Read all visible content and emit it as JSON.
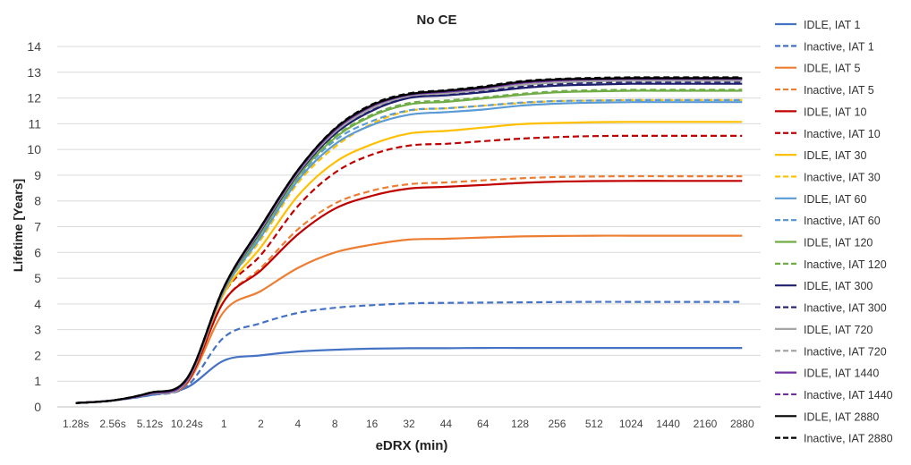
{
  "chart_data": {
    "type": "line",
    "title": "No CE",
    "xlabel": "eDRX (min)",
    "ylabel": "Lifetime [Years]",
    "categories": [
      "1.28s",
      "2.56s",
      "5.12s",
      "10.24s",
      "1",
      "2",
      "4",
      "8",
      "16",
      "32",
      "44",
      "64",
      "128",
      "256",
      "512",
      "1024",
      "1440",
      "2160",
      "2880"
    ],
    "ylim": [
      0,
      14
    ],
    "yticks": [
      0,
      1,
      2,
      3,
      4,
      5,
      6,
      7,
      8,
      9,
      10,
      11,
      12,
      13,
      14
    ],
    "grid": "horizontal",
    "legend_position": "right",
    "series": [
      {
        "name": "IDLE, IAT 1",
        "color": "#4472C4",
        "dash": "solid",
        "values": [
          0.15,
          0.25,
          0.45,
          0.75,
          1.8,
          2.0,
          2.15,
          2.22,
          2.26,
          2.28,
          2.28,
          2.29,
          2.29,
          2.29,
          2.29,
          2.29,
          2.29,
          2.29,
          2.29
        ]
      },
      {
        "name": "Inactive, IAT 1",
        "color": "#4472C4",
        "dash": "dashed",
        "values": [
          0.15,
          0.25,
          0.45,
          0.8,
          2.7,
          3.25,
          3.65,
          3.85,
          3.95,
          4.02,
          4.04,
          4.05,
          4.06,
          4.07,
          4.08,
          4.08,
          4.08,
          4.08,
          4.08
        ]
      },
      {
        "name": "IDLE, IAT 5",
        "color": "#ED7D31",
        "dash": "solid",
        "values": [
          0.15,
          0.25,
          0.5,
          0.9,
          3.7,
          4.5,
          5.4,
          6.0,
          6.3,
          6.5,
          6.53,
          6.58,
          6.62,
          6.64,
          6.65,
          6.65,
          6.65,
          6.65,
          6.65
        ]
      },
      {
        "name": "Inactive, IAT 5",
        "color": "#ED7D31",
        "dash": "dashed",
        "values": [
          0.15,
          0.25,
          0.5,
          0.95,
          4.1,
          5.4,
          6.9,
          7.9,
          8.4,
          8.65,
          8.72,
          8.8,
          8.88,
          8.93,
          8.95,
          8.96,
          8.96,
          8.96,
          8.96
        ]
      },
      {
        "name": "IDLE, IAT 10",
        "color": "#C00000",
        "dash": "solid",
        "values": [
          0.15,
          0.25,
          0.5,
          0.95,
          4.1,
          5.3,
          6.7,
          7.7,
          8.2,
          8.48,
          8.55,
          8.62,
          8.7,
          8.75,
          8.77,
          8.78,
          8.78,
          8.78,
          8.78
        ]
      },
      {
        "name": "Inactive, IAT 10",
        "color": "#C00000",
        "dash": "dashed",
        "values": [
          0.15,
          0.25,
          0.5,
          0.98,
          4.4,
          5.9,
          7.8,
          9.1,
          9.8,
          10.15,
          10.22,
          10.32,
          10.42,
          10.48,
          10.52,
          10.53,
          10.53,
          10.53,
          10.53
        ]
      },
      {
        "name": "IDLE, IAT 30",
        "color": "#FFC000",
        "dash": "solid",
        "values": [
          0.15,
          0.25,
          0.5,
          1.0,
          4.4,
          6.2,
          8.2,
          9.5,
          10.2,
          10.62,
          10.72,
          10.85,
          10.98,
          11.03,
          11.06,
          11.07,
          11.07,
          11.07,
          11.07
        ]
      },
      {
        "name": "Inactive, IAT 30",
        "color": "#FFC000",
        "dash": "dashed",
        "values": [
          0.15,
          0.25,
          0.5,
          1.0,
          4.5,
          6.5,
          8.7,
          10.1,
          11.0,
          11.5,
          11.6,
          11.7,
          11.8,
          11.88,
          11.9,
          11.92,
          11.92,
          11.92,
          11.92
        ]
      },
      {
        "name": "IDLE, IAT 60",
        "color": "#5B9BD5",
        "dash": "solid",
        "values": [
          0.15,
          0.25,
          0.5,
          1.0,
          4.5,
          6.6,
          8.8,
          10.2,
          10.95,
          11.35,
          11.45,
          11.55,
          11.7,
          11.78,
          11.82,
          11.84,
          11.84,
          11.84,
          11.84
        ]
      },
      {
        "name": "Inactive, IAT 60",
        "color": "#5B9BD5",
        "dash": "dashed",
        "values": [
          0.15,
          0.25,
          0.5,
          1.0,
          4.55,
          6.7,
          8.9,
          10.35,
          11.1,
          11.52,
          11.6,
          11.7,
          11.82,
          11.88,
          11.9,
          11.92,
          11.92,
          11.92,
          11.92
        ]
      },
      {
        "name": "IDLE, IAT 120",
        "color": "#70AD47",
        "dash": "solid",
        "values": [
          0.15,
          0.25,
          0.5,
          1.0,
          4.55,
          6.75,
          8.95,
          10.45,
          11.3,
          11.75,
          11.85,
          11.98,
          12.12,
          12.22,
          12.26,
          12.28,
          12.28,
          12.28,
          12.28
        ]
      },
      {
        "name": "Inactive, IAT 120",
        "color": "#70AD47",
        "dash": "dashed",
        "values": [
          0.15,
          0.25,
          0.5,
          1.0,
          4.55,
          6.8,
          9.0,
          10.5,
          11.35,
          11.8,
          11.9,
          12.02,
          12.16,
          12.26,
          12.3,
          12.32,
          12.32,
          12.32,
          12.32
        ]
      },
      {
        "name": "IDLE, IAT 300",
        "color": "#1F1F6E",
        "dash": "solid",
        "values": [
          0.15,
          0.25,
          0.5,
          1.0,
          4.6,
          6.85,
          9.05,
          10.6,
          11.5,
          12.0,
          12.1,
          12.22,
          12.38,
          12.48,
          12.52,
          12.55,
          12.55,
          12.55,
          12.55
        ]
      },
      {
        "name": "Inactive, IAT 300",
        "color": "#1F1F6E",
        "dash": "dashed",
        "values": [
          0.15,
          0.25,
          0.5,
          1.0,
          4.6,
          6.9,
          9.1,
          10.65,
          11.55,
          12.05,
          12.15,
          12.28,
          12.45,
          12.55,
          12.6,
          12.62,
          12.62,
          12.62,
          12.62
        ]
      },
      {
        "name": "IDLE, IAT 720",
        "color": "#A5A5A5",
        "dash": "solid",
        "values": [
          0.15,
          0.25,
          0.5,
          1.0,
          4.6,
          6.9,
          9.1,
          10.68,
          11.6,
          12.08,
          12.18,
          12.32,
          12.5,
          12.6,
          12.65,
          12.67,
          12.67,
          12.67,
          12.67
        ]
      },
      {
        "name": "Inactive, IAT 720",
        "color": "#A5A5A5",
        "dash": "dashed",
        "values": [
          0.15,
          0.25,
          0.5,
          1.0,
          4.6,
          6.9,
          9.12,
          10.7,
          11.62,
          12.1,
          12.2,
          12.34,
          12.52,
          12.62,
          12.67,
          12.7,
          12.7,
          12.7,
          12.7
        ]
      },
      {
        "name": "IDLE, IAT 1440",
        "color": "#7030A0",
        "dash": "solid",
        "values": [
          0.15,
          0.25,
          0.52,
          1.05,
          4.62,
          6.95,
          9.15,
          10.75,
          11.68,
          12.12,
          12.24,
          12.38,
          12.58,
          12.68,
          12.72,
          12.74,
          12.74,
          12.74,
          12.74
        ]
      },
      {
        "name": "Inactive, IAT 1440",
        "color": "#7030A0",
        "dash": "dashed",
        "values": [
          0.15,
          0.25,
          0.52,
          1.05,
          4.62,
          6.95,
          9.15,
          10.76,
          11.7,
          12.14,
          12.26,
          12.4,
          12.6,
          12.7,
          12.74,
          12.76,
          12.76,
          12.76,
          12.76
        ]
      },
      {
        "name": "IDLE, IAT 2880",
        "color": "#000000",
        "dash": "solid",
        "values": [
          0.15,
          0.25,
          0.55,
          1.1,
          4.65,
          7.0,
          9.2,
          10.8,
          11.72,
          12.15,
          12.28,
          12.42,
          12.62,
          12.72,
          12.75,
          12.77,
          12.77,
          12.77,
          12.77
        ]
      },
      {
        "name": "Inactive, IAT 2880",
        "color": "#000000",
        "dash": "dashed",
        "values": [
          0.15,
          0.25,
          0.55,
          1.1,
          4.65,
          7.0,
          9.2,
          10.82,
          11.75,
          12.18,
          12.3,
          12.45,
          12.65,
          12.74,
          12.78,
          12.8,
          12.8,
          12.8,
          12.8
        ]
      }
    ]
  }
}
